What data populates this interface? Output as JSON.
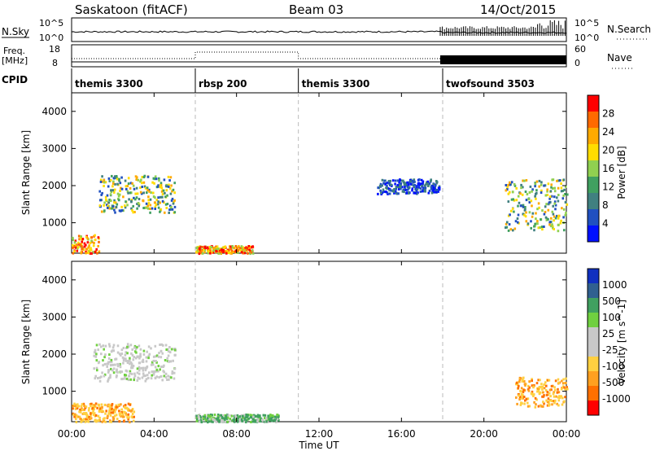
{
  "header": {
    "station": "Saskatoon (fitACF)",
    "beam": "Beam 03",
    "date": "14/Oct/2015"
  },
  "status_panels": {
    "nsky_label": "N.Sky",
    "nsky_ticks": [
      "10^5",
      "10^0"
    ],
    "nsearch_label": "N.Search",
    "nsearch_ticks": [
      "10^5",
      "10^0"
    ],
    "freq_label_1": "Freq.",
    "freq_label_2": "[MHz]",
    "freq_ticks": [
      "18",
      "8"
    ],
    "nave_label": "Nave",
    "nave_ticks": [
      "60",
      "0"
    ],
    "cpid_label": "CPID"
  },
  "cpid_segments": [
    {
      "name": "themis 3300",
      "start_hour": 0
    },
    {
      "name": "rbsp 200",
      "start_hour": 6
    },
    {
      "name": "themis 3300",
      "start_hour": 11
    },
    {
      "name": "twofsound 3503",
      "start_hour": 18
    }
  ],
  "axes": {
    "ylabel": "Slant Range [km]",
    "yticks": [
      "4000",
      "3000",
      "2000",
      "1000"
    ],
    "xlabel": "Time UT",
    "xticks": [
      "00:00",
      "04:00",
      "08:00",
      "12:00",
      "16:00",
      "20:00",
      "00:00"
    ]
  },
  "power_colorbar": {
    "label": "Power [dB]",
    "ticks": [
      "28",
      "24",
      "20",
      "16",
      "12",
      "8",
      "4"
    ],
    "colors": [
      "#ff0000",
      "#ff6a00",
      "#ffaa00",
      "#ffdd00",
      "#90d050",
      "#40a060",
      "#408080",
      "#2050c0",
      "#0010ff"
    ]
  },
  "velocity_colorbar": {
    "label": "Velocity [m s^-1]",
    "ticks": [
      "1000",
      "500",
      "100",
      "25",
      "-25",
      "-100",
      "-500",
      "-1000"
    ],
    "colors": [
      "#1030c0",
      "#306090",
      "#40a060",
      "#70d040",
      "#c8c8c8",
      "#c8c8c8",
      "#ffd040",
      "#ffa020",
      "#ff7000",
      "#ff0000"
    ]
  },
  "chart_data": [
    {
      "type": "heatmap",
      "title": "Power",
      "xlabel": "Time UT",
      "ylabel": "Slant Range [km]",
      "xlim": [
        0,
        24
      ],
      "ylim": [
        180,
        4500
      ],
      "colorbar_label": "Power [dB]",
      "colorbar_ticks": [
        4,
        8,
        12,
        16,
        20,
        24,
        28
      ],
      "echo_regions": [
        {
          "t_hours": [
            0.0,
            1.3
          ],
          "range_km": [
            200,
            700
          ],
          "level": "high"
        },
        {
          "t_hours": [
            1.3,
            5.0
          ],
          "range_km": [
            1300,
            2300
          ],
          "level": "mixed"
        },
        {
          "t_hours": [
            6.0,
            8.8
          ],
          "range_km": [
            200,
            400
          ],
          "level": "high"
        },
        {
          "t_hours": [
            14.8,
            17.8
          ],
          "range_km": [
            1800,
            2200
          ],
          "level": "low"
        },
        {
          "t_hours": [
            21.0,
            24.0
          ],
          "range_km": [
            800,
            2200
          ],
          "level": "mixed"
        }
      ]
    },
    {
      "type": "heatmap",
      "title": "Velocity",
      "xlabel": "Time UT",
      "ylabel": "Slant Range [km]",
      "xlim": [
        0,
        24
      ],
      "ylim": [
        180,
        4500
      ],
      "colorbar_label": "Velocity [m s^-1]",
      "colorbar_ticks": [
        -1000,
        -500,
        -100,
        -25,
        25,
        100,
        500,
        1000
      ],
      "echo_regions": [
        {
          "t_hours": [
            0.0,
            3.0
          ],
          "range_km": [
            200,
            700
          ],
          "level": "negative"
        },
        {
          "t_hours": [
            1.0,
            5.0
          ],
          "range_km": [
            1300,
            2300
          ],
          "level": "near-zero"
        },
        {
          "t_hours": [
            6.0,
            10.0
          ],
          "range_km": [
            200,
            400
          ],
          "level": "positive"
        },
        {
          "t_hours": [
            21.5,
            24.0
          ],
          "range_km": [
            600,
            1400
          ],
          "level": "negative"
        }
      ]
    }
  ]
}
